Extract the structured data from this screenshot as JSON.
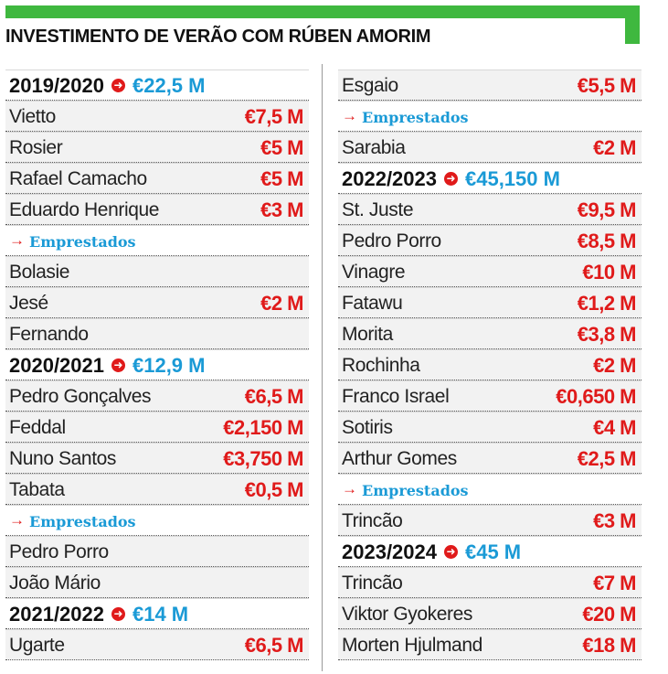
{
  "header": {
    "title": "INVESTIMENTO DE VERÃO COM RÚBEN AMORIM",
    "accent_color": "#3fb83f"
  },
  "left_column": [
    {
      "type": "season",
      "season": "2019/2020",
      "total": "€22,5 M"
    },
    {
      "type": "player",
      "name": "Vietto",
      "amount": "€7,5 M"
    },
    {
      "type": "player",
      "name": "Rosier",
      "amount": "€5 M"
    },
    {
      "type": "player",
      "name": "Rafael Camacho",
      "amount": "€5 M"
    },
    {
      "type": "player",
      "name": "Eduardo Henrique",
      "amount": "€3 M"
    },
    {
      "type": "loan",
      "label": "Emprestados"
    },
    {
      "type": "player",
      "name": "Bolasie",
      "amount": ""
    },
    {
      "type": "player",
      "name": "Jesé",
      "amount": "€2 M"
    },
    {
      "type": "player",
      "name": "Fernando",
      "amount": ""
    },
    {
      "type": "season",
      "season": "2020/2021",
      "total": "€12,9 M"
    },
    {
      "type": "player",
      "name": "Pedro Gonçalves",
      "amount": "€6,5 M"
    },
    {
      "type": "player",
      "name": "Feddal",
      "amount": "€2,150 M"
    },
    {
      "type": "player",
      "name": "Nuno Santos",
      "amount": "€3,750 M"
    },
    {
      "type": "player",
      "name": "Tabata",
      "amount": "€0,5 M"
    },
    {
      "type": "loan",
      "label": "Emprestados"
    },
    {
      "type": "player",
      "name": "Pedro Porro",
      "amount": ""
    },
    {
      "type": "player",
      "name": "João Mário",
      "amount": ""
    },
    {
      "type": "season",
      "season": "2021/2022",
      "total": "€14 M"
    },
    {
      "type": "player",
      "name": "Ugarte",
      "amount": "€6,5 M"
    }
  ],
  "right_column": [
    {
      "type": "player",
      "name": "Esgaio",
      "amount": "€5,5 M"
    },
    {
      "type": "loan",
      "label": "Emprestados"
    },
    {
      "type": "player",
      "name": "Sarabia",
      "amount": "€2 M"
    },
    {
      "type": "season",
      "season": "2022/2023",
      "total": "€45,150 M"
    },
    {
      "type": "player",
      "name": "St. Juste",
      "amount": "€9,5 M"
    },
    {
      "type": "player",
      "name": "Pedro Porro",
      "amount": "€8,5 M"
    },
    {
      "type": "player",
      "name": "Vinagre",
      "amount": "€10 M"
    },
    {
      "type": "player",
      "name": "Fatawu",
      "amount": "€1,2 M"
    },
    {
      "type": "player",
      "name": "Morita",
      "amount": "€3,8 M"
    },
    {
      "type": "player",
      "name": "Rochinha",
      "amount": "€2 M"
    },
    {
      "type": "player",
      "name": "Franco Israel",
      "amount": "€0,650 M"
    },
    {
      "type": "player",
      "name": "Sotiris",
      "amount": "€4 M"
    },
    {
      "type": "player",
      "name": "Arthur Gomes",
      "amount": "€2,5 M"
    },
    {
      "type": "loan",
      "label": "Emprestados"
    },
    {
      "type": "player",
      "name": "Trincão",
      "amount": "€3 M"
    },
    {
      "type": "season",
      "season": "2023/2024",
      "total": "€45 M"
    },
    {
      "type": "player",
      "name": "Trincão",
      "amount": "€7 M"
    },
    {
      "type": "player",
      "name": "Viktor Gyokeres",
      "amount": "€20 M"
    },
    {
      "type": "player",
      "name": "Morten Hjulmand",
      "amount": "€18 M"
    }
  ]
}
